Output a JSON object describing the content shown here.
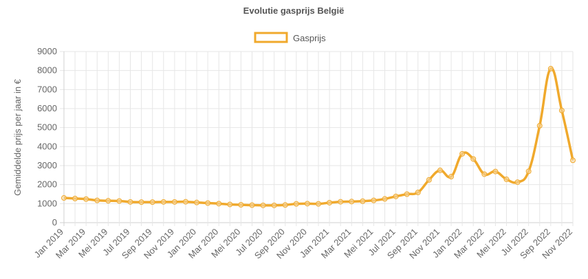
{
  "chart_data": {
    "type": "line",
    "title": "Evolutie gasprijs België",
    "xlabel": "",
    "ylabel": "Gemiddelde prijs per jaar in €",
    "ylim": [
      0,
      9000
    ],
    "yticks": [
      0,
      1000,
      2000,
      3000,
      4000,
      5000,
      6000,
      7000,
      8000,
      9000
    ],
    "grid": true,
    "legend_position": "top",
    "x": [
      "Jan 2019",
      "Feb 2019",
      "Mar 2019",
      "Apr 2019",
      "Mei 2019",
      "Jun 2019",
      "Jul 2019",
      "Aug 2019",
      "Sep 2019",
      "Okt 2019",
      "Nov 2019",
      "Dec 2019",
      "Jan 2020",
      "Feb 2020",
      "Mar 2020",
      "Apr 2020",
      "Mei 2020",
      "Jun 2020",
      "Jul 2020",
      "Aug 2020",
      "Sep 2020",
      "Okt 2020",
      "Nov 2020",
      "Dec 2020",
      "Jan 2021",
      "Feb 2021",
      "Mar 2021",
      "Apr 2021",
      "Mei 2021",
      "Jun 2021",
      "Jul 2021",
      "Aug 2021",
      "Sep 2021",
      "Okt 2021",
      "Nov 2021",
      "Dec 2021",
      "Jan 2022",
      "Feb 2022",
      "Mar 2022",
      "Apr 2022",
      "Mei 2022",
      "Jun 2022",
      "Jul 2022",
      "Aug 2022",
      "Sep 2022",
      "Okt 2022",
      "Nov 2022"
    ],
    "tick_labels": [
      "Jan 2019",
      "Mar 2019",
      "Mei 2019",
      "Jul 2019",
      "Sep 2019",
      "Nov 2019",
      "Jan 2020",
      "Mar 2020",
      "Mei 2020",
      "Jul 2020",
      "Sep 2020",
      "Nov 2020",
      "Jan 2021",
      "Mar 2021",
      "Mei 2021",
      "Jul 2021",
      "Sep 2021",
      "Nov 2021",
      "Jan 2022",
      "Mar 2022",
      "Mei 2022",
      "Jul 2022",
      "Sep 2022",
      "Nov 2022"
    ],
    "series": [
      {
        "name": "Gasprijs",
        "color": "#f0a92c",
        "values": [
          1300,
          1270,
          1240,
          1170,
          1150,
          1140,
          1090,
          1080,
          1080,
          1090,
          1090,
          1100,
          1060,
          1030,
          1000,
          960,
          940,
          920,
          910,
          910,
          930,
          990,
          1000,
          990,
          1050,
          1100,
          1110,
          1130,
          1170,
          1250,
          1380,
          1500,
          1590,
          2250,
          2750,
          2420,
          3620,
          3350,
          2550,
          2690,
          2280,
          2130,
          2700,
          5100,
          8100,
          5900,
          3280
        ]
      }
    ]
  }
}
